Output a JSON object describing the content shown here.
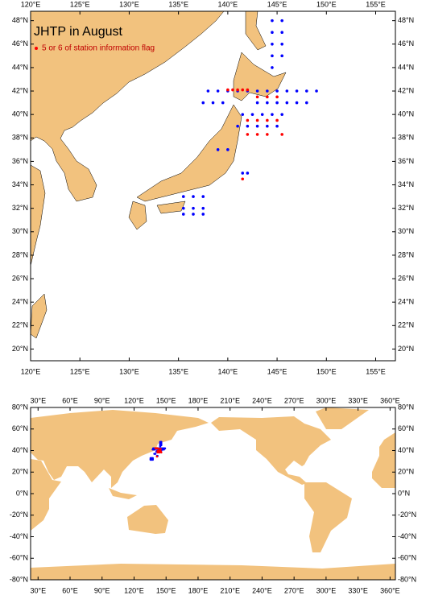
{
  "map1": {
    "title": "JHTP in August",
    "legend": "5 or 6 of station information flag",
    "xlim": [
      120,
      157
    ],
    "ylim": [
      19,
      48.8
    ],
    "xticks": [
      {
        "value": 120,
        "label": "120°E"
      },
      {
        "value": 125,
        "label": "125°E"
      },
      {
        "value": 130,
        "label": "130°E"
      },
      {
        "value": 135,
        "label": "135°E"
      },
      {
        "value": 140,
        "label": "140°E"
      },
      {
        "value": 145,
        "label": "145°E"
      },
      {
        "value": 150,
        "label": "150°E"
      },
      {
        "value": 155,
        "label": "155°E"
      }
    ],
    "yticks": [
      {
        "value": 20,
        "label": "20°N"
      },
      {
        "value": 22,
        "label": "22°N"
      },
      {
        "value": 24,
        "label": "24°N"
      },
      {
        "value": 26,
        "label": "26°N"
      },
      {
        "value": 28,
        "label": "28°N"
      },
      {
        "value": 30,
        "label": "30°N"
      },
      {
        "value": 32,
        "label": "32°N"
      },
      {
        "value": 34,
        "label": "34°N"
      },
      {
        "value": 36,
        "label": "36°N"
      },
      {
        "value": 38,
        "label": "38°N"
      },
      {
        "value": 40,
        "label": "40°N"
      },
      {
        "value": 42,
        "label": "42°N"
      },
      {
        "value": 44,
        "label": "44°N"
      },
      {
        "value": 46,
        "label": "46°N"
      },
      {
        "value": 48,
        "label": "48°N"
      }
    ],
    "stations": [
      {
        "color": "#0000ff",
        "lon": [
          144.5,
          144.5,
          144.5,
          144.5,
          144.5,
          145.5,
          145.5,
          145.5,
          145.5,
          138,
          139,
          140,
          141,
          142,
          143,
          144,
          145,
          146,
          147,
          148,
          149,
          137.5,
          138.5,
          139.5,
          143,
          144,
          145,
          146,
          147,
          148,
          141.5,
          142.5,
          143.5,
          144.5,
          145.5,
          141,
          142,
          143,
          144,
          145,
          139,
          140,
          141.5,
          142,
          135.5,
          136.5,
          137.5,
          135.5,
          136.5,
          137.5,
          135.5,
          136.5,
          137.5
        ],
        "lat": [
          48,
          47,
          46,
          45,
          44,
          48,
          47,
          46,
          45,
          42,
          42,
          42,
          42,
          42,
          42,
          42,
          42,
          42,
          42,
          42,
          42,
          41,
          41,
          41,
          41,
          41,
          41,
          41,
          41,
          41,
          40,
          40,
          40,
          40,
          40,
          39,
          39,
          39,
          39,
          39,
          37,
          37,
          35,
          35,
          33,
          33,
          33,
          32,
          32,
          32,
          31.5,
          31.5,
          31.5
        ]
      },
      {
        "color": "#ff0000",
        "name": "5 or 6 of station information flag",
        "lon": [
          140,
          140.5,
          141,
          141.5,
          142,
          143,
          144,
          145,
          142,
          143,
          144,
          145,
          142,
          143,
          144,
          145.5,
          141.5
        ],
        "lat": [
          42.1,
          42.1,
          42.1,
          42.1,
          42.1,
          41.5,
          41.5,
          41.5,
          39.5,
          39.5,
          39.5,
          39.5,
          38.3,
          38.3,
          38.3,
          38.3,
          34.5
        ]
      }
    ]
  },
  "map2": {
    "xlim": [
      23,
      365
    ],
    "ylim": [
      -80,
      80
    ],
    "xticks": [
      {
        "value": 30,
        "label": "30°E"
      },
      {
        "value": 60,
        "label": "60°E"
      },
      {
        "value": 90,
        "label": "90°E"
      },
      {
        "value": 120,
        "label": "120°E"
      },
      {
        "value": 150,
        "label": "150°E"
      },
      {
        "value": 180,
        "label": "180°E"
      },
      {
        "value": 210,
        "label": "210°E"
      },
      {
        "value": 240,
        "label": "240°E"
      },
      {
        "value": 270,
        "label": "270°E"
      },
      {
        "value": 300,
        "label": "300°E"
      },
      {
        "value": 330,
        "label": "330°E"
      },
      {
        "value": 360,
        "label": "360°E"
      }
    ],
    "yticks": [
      {
        "value": -80,
        "label": "-80°N"
      },
      {
        "value": -60,
        "label": "-60°N"
      },
      {
        "value": -40,
        "label": "-40°N"
      },
      {
        "value": -20,
        "label": "-20°N"
      },
      {
        "value": 0,
        "label": "0°N"
      },
      {
        "value": 20,
        "label": "20°N"
      },
      {
        "value": 40,
        "label": "40°N"
      },
      {
        "value": 60,
        "label": "60°N"
      },
      {
        "value": 80,
        "label": "80°N"
      }
    ]
  }
}
